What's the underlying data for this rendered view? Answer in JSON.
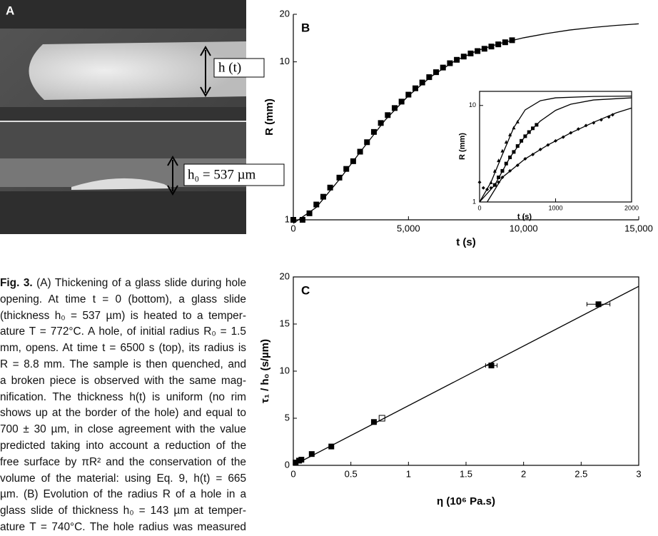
{
  "panel_a": {
    "label": "A",
    "annotations": [
      "h (t)",
      "h₀ = 537 µm"
    ]
  },
  "caption": {
    "label": "Fig. 3.",
    "lines": [
      "(A) Thickening of a glass slide during hole",
      "opening. At time t = 0 (bottom), a glass slide",
      "(thickness h₀ = 537 µm) is heated to a temper-",
      "ature T = 772°C. A hole, of initial radius R₀ = 1.5",
      "mm, opens. At time t = 6500 s (top), its radius is",
      "R = 8.8 mm. The sample is then quenched, and",
      "a broken piece is observed with the same mag-",
      "nification. The thickness h(t) is uniform (no rim",
      "shows up at the border of the hole) and equal to",
      "700 ± 30 µm, in close agreement with the value",
      "predicted taking into account a reduction of the",
      "free surface by πR² and the conservation of the",
      "volume of the material: using Eq. 9, h(t) = 665",
      "µm. (B) Evolution of the radius R of a hole in a",
      "glass slide of thickness h₀ = 143 µm at temper-",
      "ature T = 740°C. The hole radius was measured"
    ]
  },
  "chart_data": [
    {
      "type": "scatter",
      "title": "B",
      "x_label": "t (s)",
      "y_label": "R (mm)",
      "log_y": true,
      "xlim": [
        0,
        15000
      ],
      "xticks": [
        0,
        {
          "value": 5000,
          "label": "5,000"
        },
        {
          "value": 10000,
          "label": "10,000"
        },
        {
          "value": 15000,
          "label": "15,000"
        }
      ],
      "ylim": [
        1,
        20
      ],
      "yticks": [
        1,
        10,
        20
      ],
      "series": [
        {
          "style": "square",
          "color": "#000000",
          "x": [
            0,
            400,
            700,
            1000,
            1300,
            1600,
            2000,
            2300,
            2600,
            2900,
            3200,
            3500,
            3800,
            4100,
            4400,
            4700,
            5000,
            5300,
            5600,
            5900,
            6200,
            6500,
            6800,
            7100,
            7400,
            7700,
            8000,
            8300,
            8600,
            8900,
            9200,
            9500
          ],
          "values": [
            1,
            1,
            1.1,
            1.25,
            1.4,
            1.6,
            1.85,
            2.1,
            2.35,
            2.7,
            3.1,
            3.6,
            4.1,
            4.6,
            5.1,
            5.6,
            6.2,
            6.8,
            7.4,
            8,
            8.6,
            9.2,
            9.8,
            10.3,
            10.8,
            11.3,
            11.7,
            12.1,
            12.5,
            12.9,
            13.3,
            13.7
          ]
        },
        {
          "style": "line",
          "color": "#000000",
          "x": [
            0,
            1000,
            2000,
            3000,
            4000,
            5000,
            6000,
            7000,
            8000,
            9000,
            10000,
            11000,
            12000,
            13000,
            14000,
            15000
          ],
          "values": [
            0.95,
            1.2,
            1.8,
            2.8,
            4.3,
            6.1,
            8.1,
            10.1,
            11.8,
            13.1,
            14.2,
            15.1,
            15.9,
            16.5,
            17,
            17.4
          ]
        }
      ]
    },
    {
      "type": "scatter",
      "x_label": "t (s)",
      "y_label": "R (mm)",
      "log_y": true,
      "xlim": [
        0,
        2000
      ],
      "xticks": [
        0,
        1000,
        2000
      ],
      "ylim": [
        1,
        14
      ],
      "yticks": [
        1,
        10
      ],
      "series": [
        {
          "style": "triangle",
          "color": "#000000",
          "x": [
            150,
            200,
            250,
            300,
            350,
            400,
            450,
            500
          ],
          "values": [
            1.6,
            2.1,
            2.7,
            3.4,
            4.2,
            5,
            5.9,
            6.8
          ]
        },
        {
          "style": "square",
          "color": "#000000",
          "x": [
            200,
            250,
            300,
            350,
            400,
            450,
            500,
            550,
            600,
            650,
            700,
            750
          ],
          "values": [
            1.5,
            1.8,
            2.1,
            2.5,
            2.9,
            3.3,
            3.8,
            4.3,
            4.8,
            5.3,
            5.8,
            6.3
          ]
        },
        {
          "style": "diamond",
          "color": "#000000",
          "x": [
            0,
            50,
            100,
            150,
            200,
            250,
            300,
            400,
            500,
            600,
            700,
            800,
            900,
            1000,
            1100,
            1200,
            1300,
            1400,
            1500,
            1600,
            1700,
            1750
          ],
          "values": [
            1.6,
            1.4,
            1.35,
            1.4,
            1.5,
            1.6,
            1.8,
            2.1,
            2.4,
            2.8,
            3.1,
            3.5,
            3.9,
            4.3,
            4.7,
            5.2,
            5.7,
            6.2,
            6.6,
            7.1,
            7.6,
            8
          ]
        },
        {
          "style": "line",
          "color": "#000000",
          "x": [
            0,
            150,
            300,
            450,
            600,
            800,
            1000,
            1500,
            2000
          ],
          "values": [
            1,
            1.6,
            3.1,
            5.9,
            9,
            11.2,
            12,
            12.4,
            12.5
          ]
        },
        {
          "style": "line",
          "color": "#000000",
          "x": [
            0,
            200,
            400,
            600,
            800,
            1000,
            1200,
            1500,
            2000
          ],
          "values": [
            1,
            1.5,
            2.9,
            4.8,
            6.9,
            8.9,
            10.3,
            11.4,
            12
          ]
        },
        {
          "style": "line",
          "color": "#000000",
          "x": [
            100,
            300,
            600,
            900,
            1200,
            1500,
            1800,
            2000
          ],
          "values": [
            1,
            1.8,
            2.8,
            3.9,
            5.2,
            6.7,
            8.4,
            9.4
          ]
        }
      ]
    },
    {
      "type": "scatter",
      "title": "C",
      "x_label": "η (10⁶ Pa.s)",
      "y_label": "τ₁ / h₀ (s/µm)",
      "log_y": false,
      "xlim": [
        0,
        3
      ],
      "xticks": [
        0,
        0.5,
        1,
        1.5,
        2,
        2.5,
        3
      ],
      "ylim": [
        0,
        20
      ],
      "yticks": [
        0,
        5,
        10,
        15,
        20
      ],
      "series": [
        {
          "style": "square",
          "color": "#000000",
          "x": [
            0.02,
            0.05,
            0.07,
            0.16,
            0.33,
            0.7,
            1.72,
            2.65
          ],
          "values": [
            0.3,
            0.5,
            0.6,
            1.2,
            2,
            4.6,
            10.6,
            17.1
          ],
          "xerr": [
            null,
            null,
            null,
            null,
            null,
            null,
            0.05,
            0.1
          ]
        },
        {
          "style": "open-square",
          "color": "#000000",
          "x": [
            0.77
          ],
          "values": [
            5
          ]
        },
        {
          "style": "line",
          "color": "#000000",
          "x": [
            0,
            3
          ],
          "values": [
            0,
            19
          ]
        }
      ]
    }
  ]
}
